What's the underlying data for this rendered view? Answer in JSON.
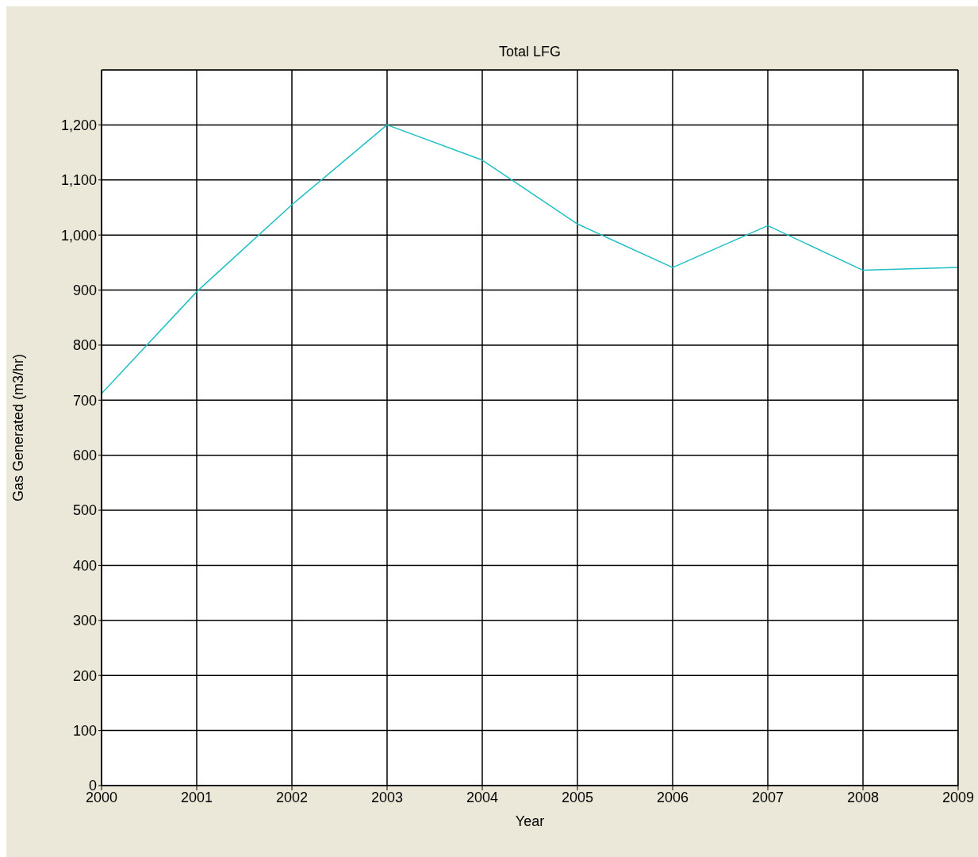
{
  "chart_data": {
    "type": "line",
    "title": "Total LFG",
    "xlabel": "Year",
    "ylabel": "Gas Generated (m3/hr)",
    "x": [
      2000,
      2001,
      2002,
      2003,
      2004,
      2005,
      2006,
      2007,
      2008,
      2009
    ],
    "series": [
      {
        "color": "#1fbfc4",
        "values": [
          712,
          897,
          1055,
          1200,
          1136,
          1020,
          941,
          1017,
          936,
          941
        ]
      }
    ],
    "xlim": [
      2000,
      2009
    ],
    "xticks": [
      2000,
      2001,
      2002,
      2003,
      2004,
      2005,
      2006,
      2007,
      2008,
      2009
    ],
    "ylim": [
      0,
      1300
    ],
    "yticks": [
      0,
      {
        "value": 100,
        "label": "100"
      },
      {
        "value": 200,
        "label": "200"
      },
      {
        "value": 300,
        "label": "300"
      },
      {
        "value": 400,
        "label": "400"
      },
      {
        "value": 500,
        "label": "500"
      },
      {
        "value": 600,
        "label": "600"
      },
      {
        "value": 700,
        "label": "700"
      },
      {
        "value": 800,
        "label": "800"
      },
      {
        "value": 900,
        "label": "900"
      },
      {
        "value": 1000,
        "label": "1,000"
      },
      {
        "value": 1100,
        "label": "1,100"
      },
      {
        "value": 1200,
        "label": "1,200"
      }
    ],
    "grid": true,
    "legend": false,
    "marker": "none",
    "line_style": "solid"
  }
}
